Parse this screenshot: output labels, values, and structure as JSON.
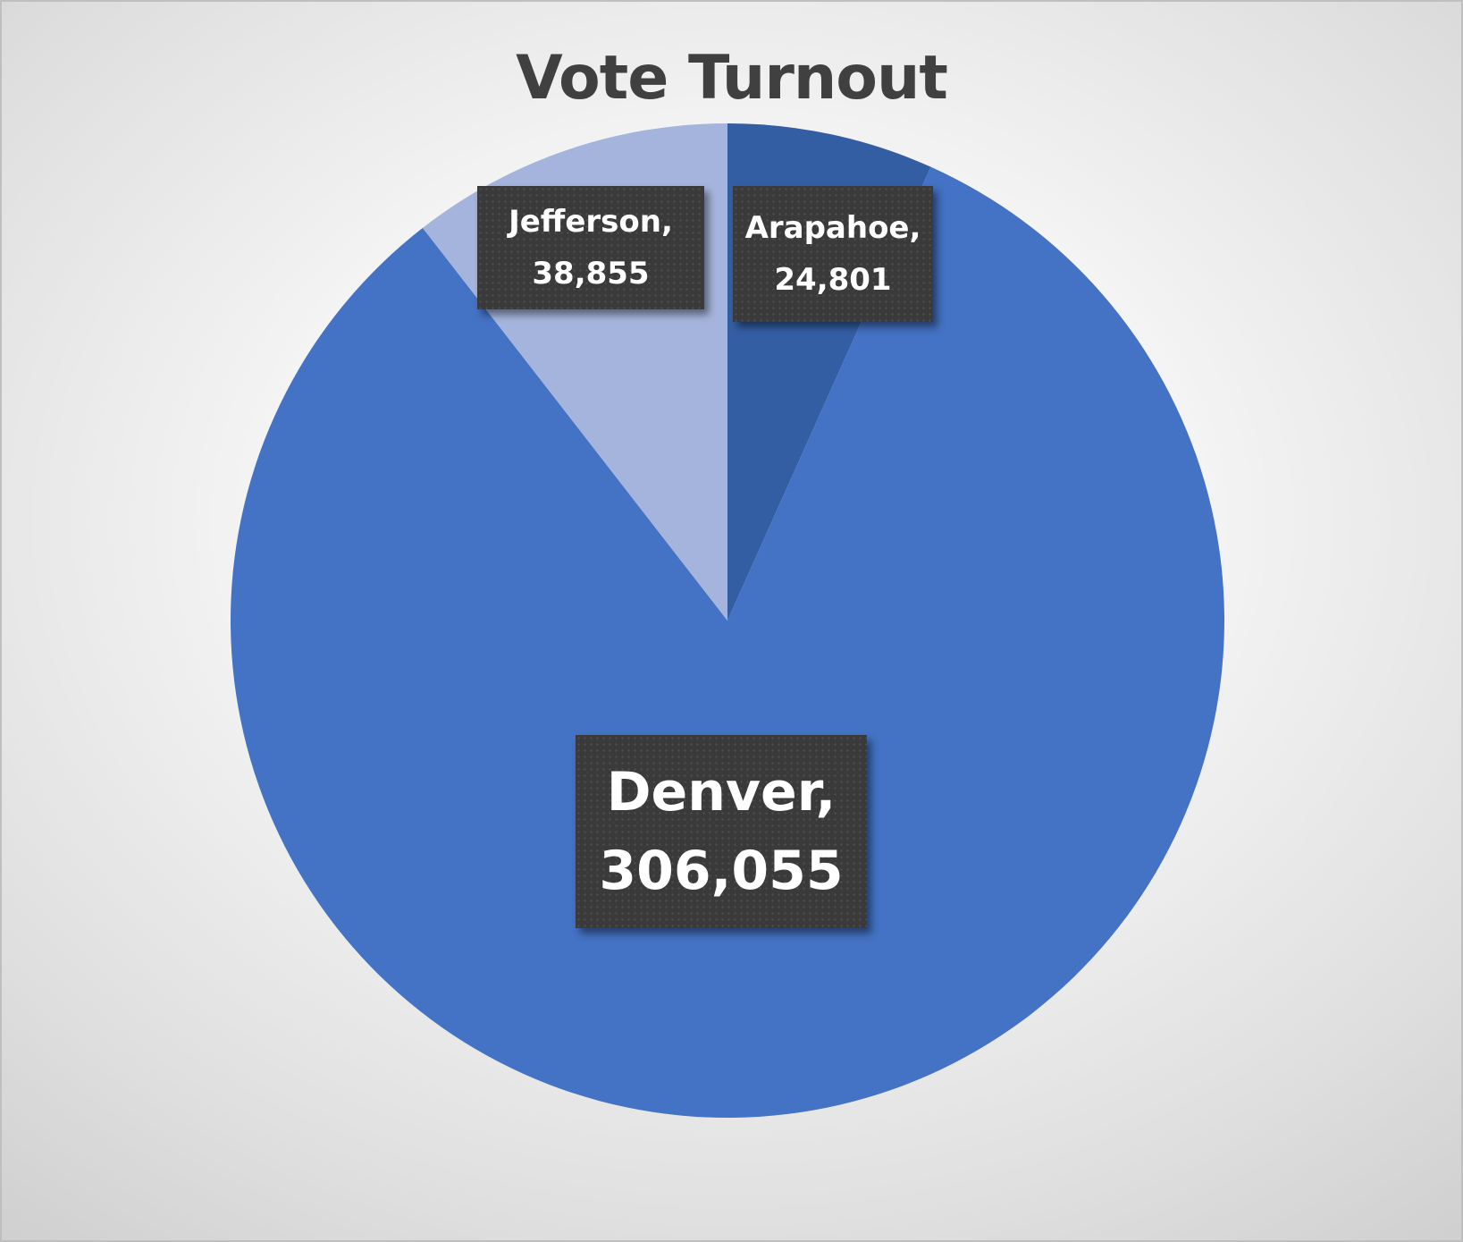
{
  "chart_data": {
    "type": "pie",
    "title": "Vote Turnout",
    "slices": [
      {
        "name": "Arapahoe",
        "value": 24801,
        "label": "Arapahoe,",
        "value_label": "24,801",
        "color": "#345ea4"
      },
      {
        "name": "Denver",
        "value": 306055,
        "label": "Denver,",
        "value_label": "306,055",
        "color": "#4472c4"
      },
      {
        "name": "Jefferson",
        "value": 38855,
        "label": "Jefferson,",
        "value_label": "38,855",
        "color": "#a5b4dc"
      }
    ]
  }
}
